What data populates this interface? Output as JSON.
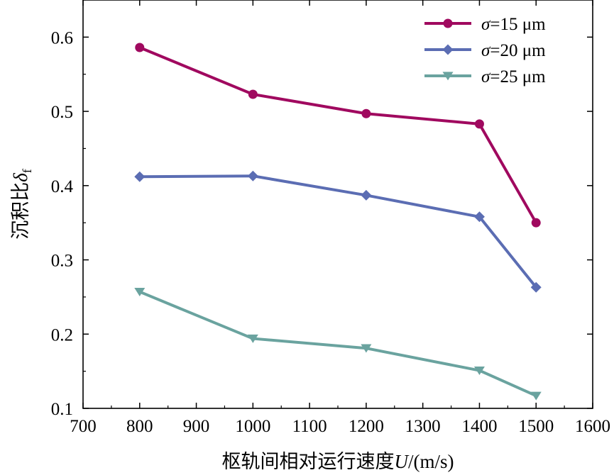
{
  "chart_data": {
    "type": "line",
    "x": [
      800,
      1000,
      1200,
      1400,
      1500
    ],
    "series": [
      {
        "name": "σ=15 μm",
        "color": "#a0095f",
        "marker": "circle",
        "values": [
          0.586,
          0.523,
          0.497,
          0.483,
          0.35
        ]
      },
      {
        "name": "σ=20 μm",
        "color": "#5b6db3",
        "marker": "diamond",
        "values": [
          0.412,
          0.413,
          0.387,
          0.358,
          0.263
        ]
      },
      {
        "name": "σ=25 μm",
        "color": "#6aa39f",
        "marker": "triangle-down",
        "values": [
          0.257,
          0.194,
          0.181,
          0.151,
          0.117
        ]
      }
    ],
    "xlabel": "枢轨间相对运行速度U/(m/s)",
    "ylabel": "沉积比δf",
    "xlim": [
      700,
      1600
    ],
    "ylim": [
      0.1,
      0.65
    ],
    "xticks": [
      "700",
      "800",
      "900",
      "1000",
      "1100",
      "1200",
      "1300",
      "1400",
      "1500",
      "1600"
    ],
    "yticks": [
      "0.1",
      "0.2",
      "0.3",
      "0.4",
      "0.5",
      "0.6"
    ],
    "grid": false,
    "legend_position": "top-right"
  }
}
